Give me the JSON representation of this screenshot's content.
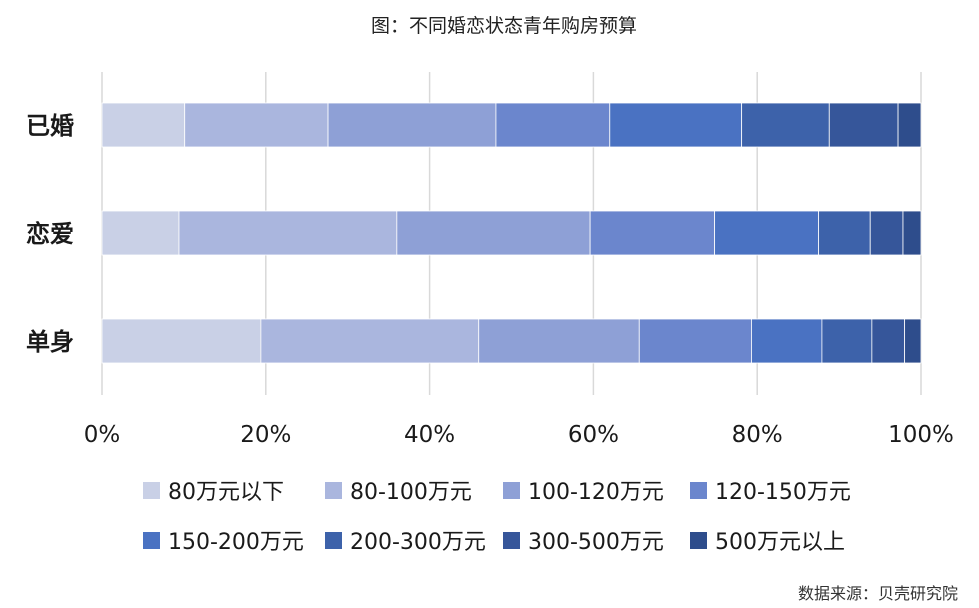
{
  "chart_data": {
    "type": "bar",
    "orientation": "horizontal",
    "stacked": "percent",
    "title": "图：不同婚恋状态青年购房预算",
    "source": "数据来源：贝壳研究院",
    "categories": [
      "已婚",
      "恋爱",
      "单身"
    ],
    "xlim": [
      0,
      100
    ],
    "xticks": [
      "0%",
      "20%",
      "40%",
      "60%",
      "80%",
      "100%"
    ],
    "grid": "vertical",
    "legend_position": "bottom",
    "series": [
      {
        "name": "80万元以下",
        "color": "#c9d0e6",
        "values": [
          10.1,
          9.4,
          19.4
        ]
      },
      {
        "name": "80-100万元",
        "color": "#aab6de",
        "values": [
          17.5,
          26.6,
          26.6
        ]
      },
      {
        "name": "100-120万元",
        "color": "#8ea0d6",
        "values": [
          20.5,
          23.6,
          19.6
        ]
      },
      {
        "name": "120-150万元",
        "color": "#6b86cd",
        "values": [
          13.9,
          15.2,
          13.7
        ]
      },
      {
        "name": "150-200万元",
        "color": "#4a72c2",
        "values": [
          16.1,
          12.7,
          8.6
        ]
      },
      {
        "name": "200-300万元",
        "color": "#3d62aa",
        "values": [
          10.7,
          6.3,
          6.1
        ]
      },
      {
        "name": "300-500万元",
        "color": "#36569a",
        "values": [
          8.4,
          4.0,
          4.0
        ]
      },
      {
        "name": "500万元以上",
        "color": "#2e4d8c",
        "values": [
          2.8,
          2.2,
          2.0
        ]
      }
    ]
  }
}
